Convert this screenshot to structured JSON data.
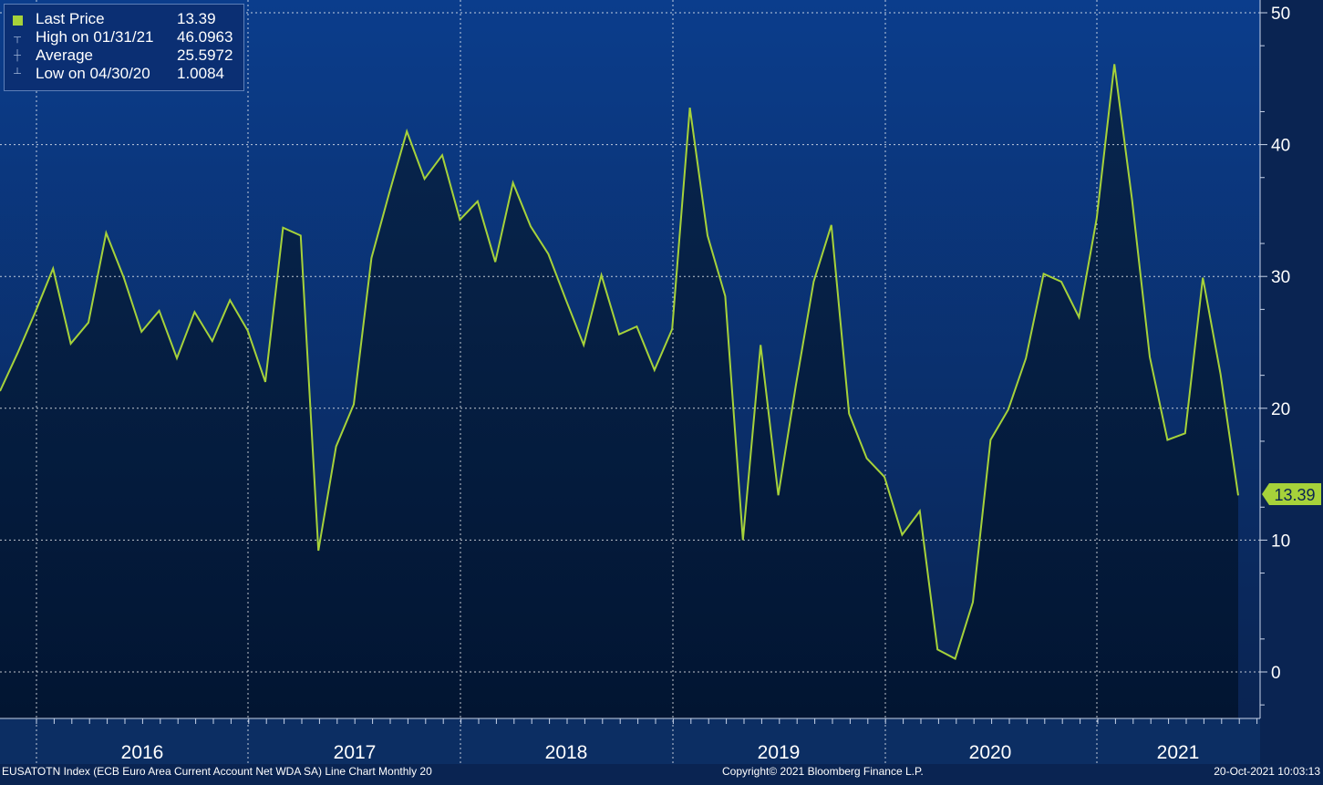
{
  "legend": {
    "last_price_label": "Last Price",
    "last_price_value": "13.39",
    "high_label": "High on 01/31/21",
    "high_value": "46.0963",
    "average_label": "Average",
    "average_value": "25.5972",
    "low_label": "Low on 04/30/20",
    "low_value": "1.0084"
  },
  "footer": {
    "left": "EUSATOTN Index (ECB Euro Area Current Account Net WDA SA) Line Chart  Monthly 20",
    "center": "Copyright© 2021 Bloomberg Finance L.P.",
    "right": "20-Oct-2021 10:03:13"
  },
  "last_price_tag": "13.39",
  "colors": {
    "line": "#a6d23a",
    "background_top": "#0b3d8c",
    "background_bottom": "#0a2452",
    "fill": "#03193d"
  },
  "chart_data": {
    "type": "area",
    "series": [
      {
        "name": "Last Price",
        "values": [
          21.3,
          24.2,
          27.3,
          30.6,
          24.9,
          26.5,
          33.3,
          29.9,
          25.8,
          27.4,
          23.8,
          27.3,
          25.1,
          28.2,
          25.9,
          22.0,
          33.7,
          33.1,
          9.2,
          17.1,
          20.3,
          31.4,
          36.3,
          41.0,
          37.4,
          39.2,
          34.3,
          35.7,
          31.1,
          37.1,
          33.8,
          31.7,
          28.2,
          24.8,
          30.1,
          25.6,
          26.2,
          22.9,
          26.0,
          42.8,
          33.1,
          28.5,
          10.0,
          24.8,
          13.4,
          21.8,
          29.6,
          33.9,
          19.6,
          16.2,
          14.8,
          10.4,
          12.2,
          1.7,
          1.0,
          5.3,
          17.6,
          19.9,
          23.8,
          30.2,
          29.6,
          26.9,
          34.4,
          46.1,
          35.8,
          23.9,
          17.6,
          18.1,
          29.9,
          22.6,
          13.39
        ]
      }
    ],
    "x_labels": [
      "2016",
      "2017",
      "2018",
      "2019",
      "2020",
      "2021"
    ],
    "y_ticks": [
      0,
      10,
      20,
      30,
      40,
      50
    ],
    "ylim": [
      -3.5,
      51
    ],
    "grid": true,
    "legend_position": "top-left"
  }
}
